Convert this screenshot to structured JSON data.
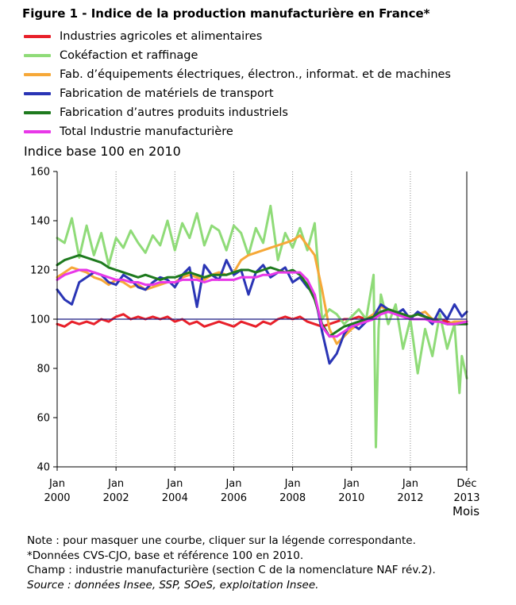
{
  "title": "Figure 1 - Indice de la production manufacturière en France*",
  "notes": {
    "line1": "Note : pour masquer une courbe, cliquer sur la légende correspondante.",
    "line2": "*Données CVS-CJO, base et référence 100 en 2010.",
    "line3": "Champ : industrie manufacturière (section C de la nomenclature NAF rév.2).",
    "line4": "Source : données Insee, SSP, SOeS, exploitation Insee."
  },
  "chart_data": {
    "type": "line",
    "ylabel": "Indice base 100 en 2010",
    "xlabel": "Mois",
    "ylim": [
      40,
      160
    ],
    "yticks": [
      40,
      60,
      80,
      100,
      120,
      140,
      160
    ],
    "xlim": [
      2000.0,
      2013.917
    ],
    "xticks": [
      {
        "x": 2000,
        "line1": "Jan",
        "line2": "2000"
      },
      {
        "x": 2002,
        "line1": "Jan",
        "line2": "2002"
      },
      {
        "x": 2004,
        "line1": "Jan",
        "line2": "2004"
      },
      {
        "x": 2006,
        "line1": "Jan",
        "line2": "2006"
      },
      {
        "x": 2008,
        "line1": "Jan",
        "line2": "2008"
      },
      {
        "x": 2010,
        "line1": "Jan",
        "line2": "2010"
      },
      {
        "x": 2012,
        "line1": "Jan",
        "line2": "2012"
      },
      {
        "x": 2013.917,
        "line1": "Déc",
        "line2": "2013"
      }
    ],
    "reference_line": 100,
    "grid": "vertical dotted",
    "legend_position": "top",
    "series": [
      {
        "name": "Industries agricoles et alimentaires",
        "color": "#e8202a",
        "x": [
          2000.0,
          2000.25,
          2000.5,
          2000.75,
          2001.0,
          2001.25,
          2001.5,
          2001.75,
          2002.0,
          2002.25,
          2002.5,
          2002.75,
          2003.0,
          2003.25,
          2003.5,
          2003.75,
          2004.0,
          2004.25,
          2004.5,
          2004.75,
          2005.0,
          2005.25,
          2005.5,
          2005.75,
          2006.0,
          2006.25,
          2006.5,
          2006.75,
          2007.0,
          2007.25,
          2007.5,
          2007.75,
          2008.0,
          2008.25,
          2008.5,
          2008.75,
          2009.0,
          2009.25,
          2009.5,
          2009.75,
          2010.0,
          2010.25,
          2010.5,
          2010.75,
          2011.0,
          2011.25,
          2011.5,
          2011.75,
          2012.0,
          2012.25,
          2012.5,
          2012.75,
          2013.0,
          2013.25,
          2013.5,
          2013.917
        ],
        "values": [
          98,
          97,
          99,
          98,
          99,
          98,
          100,
          99,
          101,
          102,
          100,
          101,
          100,
          101,
          100,
          101,
          99,
          100,
          98,
          99,
          97,
          98,
          99,
          98,
          97,
          99,
          98,
          97,
          99,
          98,
          100,
          101,
          100,
          101,
          99,
          98,
          97,
          98,
          99,
          100,
          100,
          101,
          100,
          102,
          103,
          104,
          103,
          102,
          101,
          102,
          101,
          100,
          100,
          99,
          98,
          99
        ]
      },
      {
        "name": "Cokéfaction et raffinage",
        "color": "#8fdb78",
        "x": [
          2000.0,
          2000.25,
          2000.5,
          2000.75,
          2001.0,
          2001.25,
          2001.5,
          2001.75,
          2002.0,
          2002.25,
          2002.5,
          2002.75,
          2003.0,
          2003.25,
          2003.5,
          2003.75,
          2004.0,
          2004.25,
          2004.5,
          2004.75,
          2005.0,
          2005.25,
          2005.5,
          2005.75,
          2006.0,
          2006.25,
          2006.5,
          2006.75,
          2007.0,
          2007.25,
          2007.5,
          2007.75,
          2008.0,
          2008.25,
          2008.5,
          2008.75,
          2009.0,
          2009.25,
          2009.5,
          2009.75,
          2010.0,
          2010.25,
          2010.5,
          2010.75,
          2010.83,
          2010.92,
          2011.0,
          2011.25,
          2011.5,
          2011.75,
          2012.0,
          2012.25,
          2012.5,
          2012.75,
          2013.0,
          2013.25,
          2013.5,
          2013.67,
          2013.75,
          2013.917
        ],
        "values": [
          133,
          131,
          141,
          125,
          138,
          126,
          135,
          122,
          133,
          129,
          136,
          131,
          127,
          134,
          130,
          140,
          128,
          139,
          133,
          143,
          130,
          138,
          136,
          128,
          138,
          135,
          126,
          137,
          131,
          146,
          124,
          135,
          129,
          137,
          128,
          139,
          100,
          104,
          102,
          98,
          101,
          104,
          100,
          118,
          48,
          96,
          110,
          98,
          106,
          88,
          100,
          78,
          96,
          85,
          102,
          88,
          98,
          70,
          85,
          76
        ]
      },
      {
        "name": "Fab. d’équipements électriques, électron., informat. et de machines",
        "color": "#f6a838",
        "x": [
          2000.0,
          2000.25,
          2000.5,
          2000.75,
          2001.0,
          2001.25,
          2001.5,
          2001.75,
          2002.0,
          2002.25,
          2002.5,
          2002.75,
          2003.0,
          2003.25,
          2003.5,
          2003.75,
          2004.0,
          2004.25,
          2004.5,
          2004.75,
          2005.0,
          2005.25,
          2005.5,
          2005.75,
          2006.0,
          2006.25,
          2006.5,
          2006.75,
          2007.0,
          2007.25,
          2007.5,
          2007.75,
          2008.0,
          2008.25,
          2008.5,
          2008.75,
          2009.0,
          2009.25,
          2009.5,
          2009.75,
          2010.0,
          2010.25,
          2010.5,
          2010.75,
          2011.0,
          2011.25,
          2011.5,
          2011.75,
          2012.0,
          2012.25,
          2012.5,
          2012.75,
          2013.0,
          2013.25,
          2013.5,
          2013.917
        ],
        "values": [
          117,
          119,
          121,
          120,
          119,
          117,
          116,
          114,
          116,
          115,
          113,
          114,
          112,
          113,
          114,
          115,
          115,
          117,
          118,
          117,
          116,
          118,
          119,
          118,
          119,
          124,
          126,
          127,
          128,
          129,
          130,
          131,
          132,
          134,
          130,
          126,
          112,
          96,
          90,
          93,
          96,
          98,
          100,
          102,
          105,
          104,
          103,
          102,
          101,
          102,
          103,
          100,
          99,
          98,
          99,
          99
        ]
      },
      {
        "name": "Fabrication de matériels de transport",
        "color": "#2a35b5",
        "x": [
          2000.0,
          2000.25,
          2000.5,
          2000.75,
          2001.0,
          2001.25,
          2001.5,
          2001.75,
          2002.0,
          2002.25,
          2002.5,
          2002.75,
          2003.0,
          2003.25,
          2003.5,
          2003.75,
          2004.0,
          2004.25,
          2004.5,
          2004.75,
          2005.0,
          2005.25,
          2005.5,
          2005.75,
          2006.0,
          2006.25,
          2006.5,
          2006.75,
          2007.0,
          2007.25,
          2007.5,
          2007.75,
          2008.0,
          2008.25,
          2008.5,
          2008.75,
          2009.0,
          2009.25,
          2009.5,
          2009.75,
          2010.0,
          2010.25,
          2010.5,
          2010.75,
          2011.0,
          2011.25,
          2011.5,
          2011.75,
          2012.0,
          2012.25,
          2012.5,
          2012.75,
          2013.0,
          2013.25,
          2013.5,
          2013.75,
          2013.917
        ],
        "values": [
          112,
          108,
          106,
          115,
          117,
          119,
          118,
          115,
          114,
          118,
          116,
          113,
          112,
          115,
          117,
          116,
          113,
          118,
          121,
          105,
          122,
          118,
          116,
          124,
          118,
          120,
          110,
          119,
          122,
          117,
          119,
          121,
          115,
          117,
          113,
          110,
          95,
          82,
          86,
          94,
          98,
          96,
          99,
          101,
          106,
          104,
          102,
          104,
          100,
          103,
          101,
          98,
          104,
          100,
          106,
          101,
          103
        ]
      },
      {
        "name": "Fabrication d’autres produits industriels",
        "color": "#1e7a1e",
        "x": [
          2000.0,
          2000.25,
          2000.5,
          2000.75,
          2001.0,
          2001.25,
          2001.5,
          2001.75,
          2002.0,
          2002.25,
          2002.5,
          2002.75,
          2003.0,
          2003.25,
          2003.5,
          2003.75,
          2004.0,
          2004.25,
          2004.5,
          2004.75,
          2005.0,
          2005.25,
          2005.5,
          2005.75,
          2006.0,
          2006.25,
          2006.5,
          2006.75,
          2007.0,
          2007.25,
          2007.5,
          2007.75,
          2008.0,
          2008.25,
          2008.5,
          2008.75,
          2009.0,
          2009.25,
          2009.5,
          2009.75,
          2010.0,
          2010.25,
          2010.5,
          2010.75,
          2011.0,
          2011.25,
          2011.5,
          2011.75,
          2012.0,
          2012.25,
          2012.5,
          2012.75,
          2013.0,
          2013.25,
          2013.5,
          2013.917
        ],
        "values": [
          122,
          124,
          125,
          126,
          125,
          124,
          123,
          121,
          120,
          119,
          118,
          117,
          118,
          117,
          116,
          117,
          117,
          118,
          119,
          118,
          117,
          118,
          118,
          118,
          119,
          120,
          120,
          119,
          120,
          121,
          120,
          119,
          120,
          118,
          114,
          108,
          98,
          93,
          95,
          97,
          98,
          99,
          100,
          101,
          103,
          104,
          103,
          102,
          101,
          102,
          101,
          100,
          99,
          98,
          98,
          98
        ]
      },
      {
        "name": "Total Industrie manufacturière",
        "color": "#e838e8",
        "x": [
          2000.0,
          2000.25,
          2000.5,
          2000.75,
          2001.0,
          2001.25,
          2001.5,
          2001.75,
          2002.0,
          2002.25,
          2002.5,
          2002.75,
          2003.0,
          2003.25,
          2003.5,
          2003.75,
          2004.0,
          2004.25,
          2004.5,
          2004.75,
          2005.0,
          2005.25,
          2005.5,
          2005.75,
          2006.0,
          2006.25,
          2006.5,
          2006.75,
          2007.0,
          2007.25,
          2007.5,
          2007.75,
          2008.0,
          2008.25,
          2008.5,
          2008.75,
          2009.0,
          2009.25,
          2009.5,
          2009.75,
          2010.0,
          2010.25,
          2010.5,
          2010.75,
          2011.0,
          2011.25,
          2011.5,
          2011.75,
          2012.0,
          2012.25,
          2012.5,
          2012.75,
          2013.0,
          2013.25,
          2013.5,
          2013.917
        ],
        "values": [
          116,
          118,
          119,
          120,
          120,
          119,
          118,
          117,
          116,
          116,
          115,
          115,
          114,
          114,
          115,
          115,
          115,
          116,
          116,
          116,
          115,
          116,
          116,
          116,
          116,
          117,
          117,
          117,
          118,
          118,
          119,
          119,
          119,
          119,
          116,
          110,
          97,
          93,
          93,
          95,
          97,
          98,
          99,
          100,
          102,
          103,
          102,
          101,
          100,
          100,
          100,
          99,
          99,
          98,
          98,
          99
        ]
      }
    ]
  }
}
